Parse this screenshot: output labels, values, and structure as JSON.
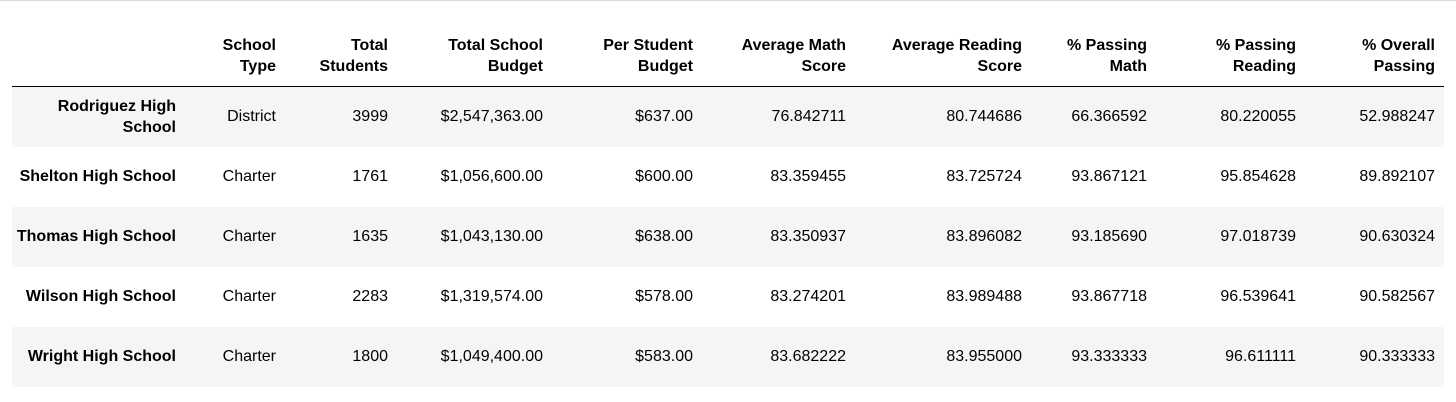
{
  "table": {
    "columns": [
      {
        "key": "type",
        "label": "School Type"
      },
      {
        "key": "students",
        "label": "Total Students"
      },
      {
        "key": "budget",
        "label": "Total School Budget"
      },
      {
        "key": "per_student",
        "label": "Per Student Budget"
      },
      {
        "key": "avg_math",
        "label": "Average Math Score"
      },
      {
        "key": "avg_reading",
        "label": "Average Reading Score"
      },
      {
        "key": "pass_math",
        "label": "% Passing Math"
      },
      {
        "key": "pass_reading",
        "label": "% Passing Reading"
      },
      {
        "key": "pass_overall",
        "label": "% Overall Passing"
      }
    ],
    "rows": [
      {
        "name": "Rodriguez High School",
        "type": "District",
        "students": "3999",
        "budget": "$2,547,363.00",
        "per_student": "$637.00",
        "avg_math": "76.842711",
        "avg_reading": "80.744686",
        "pass_math": "66.366592",
        "pass_reading": "80.220055",
        "pass_overall": "52.988247"
      },
      {
        "name": "Shelton High School",
        "type": "Charter",
        "students": "1761",
        "budget": "$1,056,600.00",
        "per_student": "$600.00",
        "avg_math": "83.359455",
        "avg_reading": "83.725724",
        "pass_math": "93.867121",
        "pass_reading": "95.854628",
        "pass_overall": "89.892107"
      },
      {
        "name": "Thomas High School",
        "type": "Charter",
        "students": "1635",
        "budget": "$1,043,130.00",
        "per_student": "$638.00",
        "avg_math": "83.350937",
        "avg_reading": "83.896082",
        "pass_math": "93.185690",
        "pass_reading": "97.018739",
        "pass_overall": "90.630324"
      },
      {
        "name": "Wilson High School",
        "type": "Charter",
        "students": "2283",
        "budget": "$1,319,574.00",
        "per_student": "$578.00",
        "avg_math": "83.274201",
        "avg_reading": "83.989488",
        "pass_math": "93.867718",
        "pass_reading": "96.539641",
        "pass_overall": "90.582567"
      },
      {
        "name": "Wright High School",
        "type": "Charter",
        "students": "1800",
        "budget": "$1,049,400.00",
        "per_student": "$583.00",
        "avg_math": "83.682222",
        "avg_reading": "83.955000",
        "pass_math": "93.333333",
        "pass_reading": "96.611111",
        "pass_overall": "90.333333"
      }
    ]
  }
}
